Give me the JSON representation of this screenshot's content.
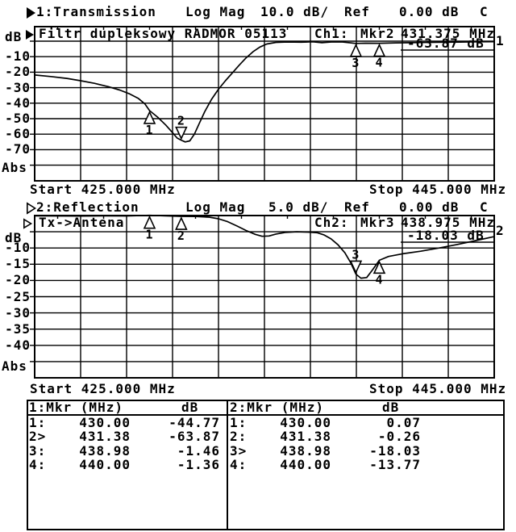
{
  "chart_data": [
    {
      "type": "line",
      "channel_label": "1:Transmission",
      "format": "Log Mag",
      "scale": "10.0 dB/",
      "ref_label": "Ref",
      "ref_value": "0.00 dB",
      "cal_flag": "C",
      "title": "Filtr dupleksowy RADMOR 05113",
      "readout": {
        "ch": "Ch1:",
        "mkr": "Mkr2",
        "freq": "431.375 MHz",
        "value": "-63.87 dB"
      },
      "trace_number": "1",
      "y_unit": "dB",
      "abs_label": "Abs",
      "yticks": [
        "-10",
        "-20",
        "-30",
        "-40",
        "-50",
        "-60",
        "-70"
      ],
      "xlabel_start": "Start 425.000 MHz",
      "xlabel_stop": "Stop 445.000 MHz",
      "x_range_mhz": [
        425,
        445
      ],
      "db_per_div": 10,
      "ref_db": 0,
      "grid": true,
      "trace_mhz": [
        425,
        425.7,
        426.4,
        427,
        427.6,
        428.2,
        428.7,
        429.1,
        429.5,
        429.8,
        430,
        430.35,
        430.7,
        431,
        431.2,
        431.38,
        431.55,
        431.75,
        431.95,
        432.15,
        432.4,
        432.7,
        433,
        433.3,
        433.6,
        433.9,
        434.2,
        434.5,
        434.8,
        435.1,
        435.5,
        436,
        436.6,
        437.1,
        437.5,
        437.9,
        438.4,
        438.98,
        439.4,
        440,
        440.7,
        441.5,
        442.5,
        443.5,
        444.3,
        445
      ],
      "trace_db": [
        -21.8,
        -22.8,
        -24,
        -25.5,
        -27.2,
        -29.3,
        -31.5,
        -33.8,
        -36.8,
        -40.5,
        -44.77,
        -49,
        -54,
        -59,
        -62.5,
        -63.87,
        -65,
        -64.3,
        -60,
        -53.5,
        -45.5,
        -37.5,
        -31,
        -25.5,
        -20.5,
        -15.5,
        -10.8,
        -6.8,
        -3.8,
        -1.8,
        -0.8,
        -0.5,
        -0.7,
        -0.4,
        -1,
        -0.5,
        -0.5,
        -1.46,
        -1.3,
        -1.36,
        -1.1,
        -0.95,
        -0.75,
        -0.55,
        -0.4,
        -0.3
      ],
      "markers": [
        {
          "n": "1",
          "mhz": 430,
          "db": -44.77,
          "active": false
        },
        {
          "n": "2",
          "mhz": 431.38,
          "db": -63.87,
          "active": true
        },
        {
          "n": "3",
          "mhz": 438.98,
          "db": -1.46,
          "active": false
        },
        {
          "n": "4",
          "mhz": 440,
          "db": -1.36,
          "active": false
        }
      ]
    },
    {
      "type": "line",
      "channel_label": "2:Reflection",
      "format": "Log Mag",
      "scale": "5.0 dB/",
      "ref_label": "Ref",
      "ref_value": "0.00 dB",
      "cal_flag": "C",
      "title": "Tx->Antena",
      "readout": {
        "ch": "Ch2:",
        "mkr": "Mkr3",
        "freq": "438.975 MHz",
        "value": "-18.03 dB"
      },
      "trace_number": "2",
      "y_unit": "dB",
      "abs_label": "Abs",
      "yticks": [
        "-10",
        "-15",
        "-20",
        "-25",
        "-30",
        "-35",
        "-40"
      ],
      "xlabel_start": "Start 425.000 MHz",
      "xlabel_stop": "Stop 445.000 MHz",
      "x_range_mhz": [
        425,
        445
      ],
      "db_per_div": 5,
      "ref_db": 0,
      "grid": true,
      "trace_mhz": [
        425,
        426,
        427,
        428,
        429,
        430,
        430.7,
        431.38,
        432,
        432.6,
        433,
        433.4,
        433.8,
        434.2,
        434.6,
        434.9,
        435.2,
        435.5,
        435.9,
        436.4,
        436.9,
        437.3,
        437.6,
        437.9,
        438.2,
        438.5,
        438.75,
        438.98,
        439.2,
        439.45,
        439.7,
        440,
        440.4,
        441,
        441.8,
        442.6,
        443.4,
        444.2,
        445
      ],
      "trace_db": [
        -0.1,
        -0.12,
        -0.15,
        -0.1,
        -0.12,
        0.07,
        -0.1,
        -0.26,
        -0.3,
        -0.5,
        -1,
        -1.9,
        -3.2,
        -4.6,
        -5.8,
        -6.4,
        -6.3,
        -5.7,
        -5.2,
        -5,
        -5.1,
        -5.3,
        -6,
        -7.2,
        -9,
        -11.5,
        -14.5,
        -18.03,
        -19.3,
        -19.1,
        -16.8,
        -13.77,
        -12.6,
        -11.8,
        -11,
        -10,
        -8.9,
        -7.7,
        -6.5
      ],
      "markers": [
        {
          "n": "1",
          "mhz": 430,
          "db": 0.07,
          "active": false
        },
        {
          "n": "2",
          "mhz": 431.38,
          "db": -0.26,
          "active": false
        },
        {
          "n": "3",
          "mhz": 438.98,
          "db": -18.03,
          "active": true
        },
        {
          "n": "4",
          "mhz": 440,
          "db": -13.77,
          "active": false
        }
      ]
    }
  ],
  "marker_table": {
    "columns": [
      {
        "header": "1:Mkr (MHz)",
        "unit": "dB",
        "rows": [
          {
            "label": "1:",
            "freq": "430.00",
            "value": "-44.77"
          },
          {
            "label": "2>",
            "freq": "431.38",
            "value": "-63.87"
          },
          {
            "label": "3:",
            "freq": "438.98",
            "value": "-1.46"
          },
          {
            "label": "4:",
            "freq": "440.00",
            "value": "-1.36"
          }
        ]
      },
      {
        "header": "2:Mkr (MHz)",
        "unit": "dB",
        "rows": [
          {
            "label": "1:",
            "freq": "430.00",
            "value": "0.07"
          },
          {
            "label": "2:",
            "freq": "431.38",
            "value": "-0.26"
          },
          {
            "label": "3>",
            "freq": "438.98",
            "value": "-18.03"
          },
          {
            "label": "4:",
            "freq": "440.00",
            "value": "-13.77"
          }
        ]
      }
    ]
  },
  "colors": {
    "ink": "#000000",
    "paper": "#ffffff"
  }
}
